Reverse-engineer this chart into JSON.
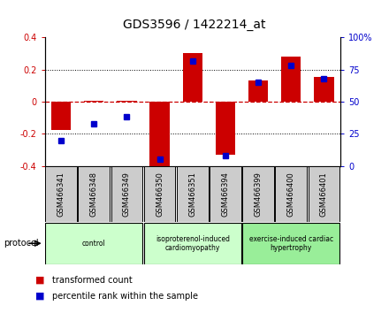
{
  "title": "GDS3596 / 1422214_at",
  "samples": [
    "GSM466341",
    "GSM466348",
    "GSM466349",
    "GSM466350",
    "GSM466351",
    "GSM466394",
    "GSM466399",
    "GSM466400",
    "GSM466401"
  ],
  "bar_values": [
    -0.175,
    0.005,
    0.005,
    -0.41,
    0.305,
    -0.33,
    0.13,
    0.28,
    0.155
  ],
  "dot_values": [
    20,
    33,
    38,
    5,
    82,
    8,
    65,
    78,
    68
  ],
  "bar_color": "#cc0000",
  "dot_color": "#0000cc",
  "left_ylim": [
    -0.4,
    0.4
  ],
  "right_ylim": [
    0,
    100
  ],
  "left_yticks": [
    -0.4,
    -0.2,
    0.0,
    0.2,
    0.4
  ],
  "right_yticks": [
    0,
    25,
    50,
    75,
    100
  ],
  "right_yticklabels": [
    "0",
    "25",
    "50",
    "75",
    "100%"
  ],
  "group_labels": [
    "control",
    "isoproterenol-induced\ncardiomyopathy",
    "exercise-induced cardiac\nhypertrophy"
  ],
  "group_starts": [
    0,
    3,
    6
  ],
  "group_ends": [
    3,
    6,
    9
  ],
  "group_colors": [
    "#ccffcc",
    "#ccffcc",
    "#99ee99"
  ],
  "protocol_label": "protocol",
  "legend_bar_label": "transformed count",
  "legend_dot_label": "percentile rank within the sample",
  "bar_width": 0.6,
  "zero_line_color": "#cc0000",
  "sample_box_color": "#cccccc",
  "title_fontsize": 10
}
